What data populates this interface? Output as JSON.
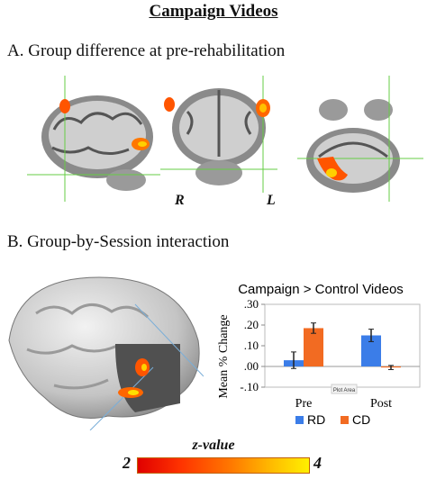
{
  "figure": {
    "title": "Campaign Videos",
    "section_a_title": "A. Group difference at pre-rehabilitation",
    "section_b_title": "B. Group-by-Session interaction",
    "orientation_left": "R",
    "orientation_right": "L"
  },
  "colorbar": {
    "label": "z-value",
    "min_label": "2",
    "max_label": "4",
    "low_color": "#e00000",
    "high_color": "#fff000"
  },
  "chart_data": {
    "type": "bar",
    "title": "Campaign > Control Videos",
    "ylabel": "Mean % Change",
    "categories": [
      "Pre",
      "Post"
    ],
    "series": [
      {
        "name": "RD",
        "color": "#3b7de8",
        "values": [
          0.03,
          0.15
        ],
        "errors": [
          0.04,
          0.03
        ]
      },
      {
        "name": "CD",
        "color": "#f26b22",
        "values": [
          0.185,
          -0.005
        ],
        "errors": [
          0.025,
          0.01
        ]
      }
    ],
    "ylim": [
      -0.1,
      0.3
    ],
    "yticks": [
      -0.1,
      0.0,
      0.1,
      0.2,
      0.3
    ],
    "ytick_labels": [
      "-.10",
      ".00",
      ".10",
      ".20",
      ".30"
    ],
    "annotation": "Plot Area",
    "legend_position": "bottom",
    "grid": false
  }
}
